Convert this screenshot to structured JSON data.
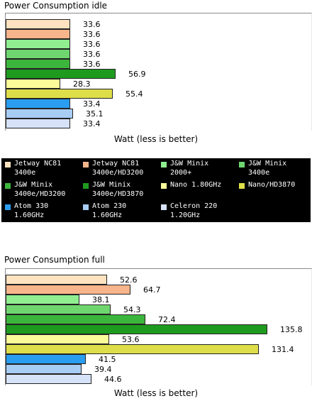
{
  "chart_data": [
    {
      "type": "bar",
      "title": "Power Consumption idle",
      "xlabel": "Watt (less is better)",
      "ylabel": "",
      "categories": [
        "Jetway NC81 3400e",
        "Jetway NC81 3400e/HD3200",
        "J&W Minix 2000+",
        "J&W Minix 3400e",
        "J&W Minix 3400e/HD3200",
        "J&W Minix 3400e/HD3870",
        "Nano 1.80GHz",
        "Nano/HD3870",
        "Atom 330 1.60GHz",
        "Atom 230 1.60GHz",
        "Celeron 220 1.20GHz"
      ],
      "values": [
        33.6,
        33.6,
        33.6,
        33.6,
        33.6,
        56.9,
        28.3,
        55.4,
        33.4,
        35.1,
        33.4
      ],
      "value_labels": [
        "33.6",
        "33.6",
        "33.6",
        "33.6",
        "33.6",
        "56.9",
        "28.3",
        "55.4",
        "33.4",
        "35.1",
        "33.4"
      ],
      "xlim": [
        0,
        155
      ],
      "grid": false
    },
    {
      "type": "bar",
      "title": "Power Consumption full",
      "xlabel": "Watt (less is better)",
      "ylabel": "",
      "categories": [
        "Jetway NC81 3400e",
        "Jetway NC81 3400e/HD3200",
        "J&W Minix 2000+",
        "J&W Minix 3400e",
        "J&W Minix 3400e/HD3200",
        "J&W Minix 3400e/HD3870",
        "Nano 1.80GHz",
        "Nano/HD3870",
        "Atom 330 1.60GHz",
        "Atom 230 1.60GHz",
        "Celeron 220 1.20GHz"
      ],
      "values": [
        52.6,
        64.7,
        38.1,
        54.3,
        72.4,
        135.8,
        53.6,
        131.4,
        41.5,
        39.4,
        44.6
      ],
      "value_labels": [
        "52.6",
        "64.7",
        "38.1",
        "54.3",
        "72.4",
        "135.8",
        "53.6",
        "131.4",
        "41.5",
        "39.4",
        "44.6"
      ],
      "xlim": [
        0,
        155
      ],
      "grid": false
    }
  ],
  "legend": {
    "items": [
      {
        "label": "Jetway NC81\n3400e",
        "color": "#ffe3c0"
      },
      {
        "label": "Jetway NC81\n3400e/HD3200",
        "color": "#f8b48a"
      },
      {
        "label": "J&W Minix\n2000+",
        "color": "#90ee90"
      },
      {
        "label": "J&W Minix\n3400e",
        "color": "#6fd66f"
      },
      {
        "label": "J&W Minix\n3400e/HD3200",
        "color": "#3cb53c"
      },
      {
        "label": "J&W Minix\n3400e/HD3870",
        "color": "#1e9b1e"
      },
      {
        "label": "Nano 1.80GHz",
        "color": "#fbfb9a"
      },
      {
        "label": "Nano/HD3870",
        "color": "#dede4a"
      },
      {
        "label": "Atom 330\n1.60GHz",
        "color": "#2a9df0"
      },
      {
        "label": "Atom 230\n1.60GHz",
        "color": "#a8cdf5"
      },
      {
        "label": "Celeron 220\n1.20GHz",
        "color": "#d6e2f7"
      }
    ]
  }
}
